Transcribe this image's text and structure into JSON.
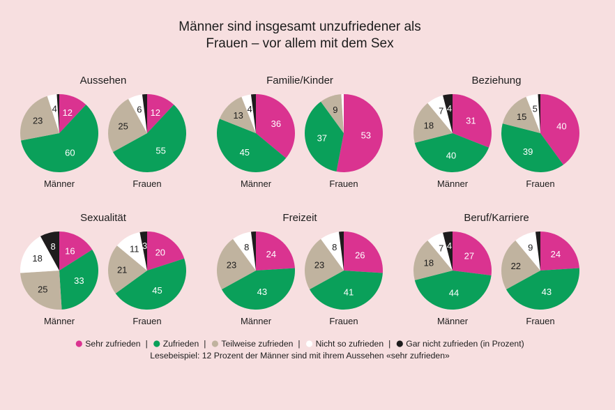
{
  "title_line1": "Männer sind insgesamt unzufriedener als",
  "title_line2": "Frauen – vor allem mit dem Sex",
  "colors": {
    "background": "#f7dfe0",
    "sehr_zufrieden": "#da3390",
    "zufrieden": "#0aa05a",
    "teilweise_zufrieden": "#c0b39f",
    "nicht_so_zufrieden": "#ffffff",
    "gar_nicht_zufrieden": "#1e1c1d"
  },
  "legend": [
    {
      "label": "Sehr zufrieden",
      "color": "#da3390"
    },
    {
      "label": "Zufrieden",
      "color": "#0aa05a"
    },
    {
      "label": "Teilweise zufrieden",
      "color": "#c0b39f"
    },
    {
      "label": "Nicht so zufrieden",
      "color": "#ffffff"
    },
    {
      "label": "Gar nicht zufrieden (in Prozent)",
      "color": "#1e1c1d"
    }
  ],
  "legend_separator": "|",
  "note": "Lesebeispiel: 12 Prozent der Männer sind mit ihrem Aussehen «sehr zufrieden»",
  "chart_data": {
    "type": "pie",
    "unit": "Prozent",
    "categories": [
      "Sehr zufrieden",
      "Zufrieden",
      "Teilweise zufrieden",
      "Nicht so zufrieden",
      "Gar nicht zufrieden"
    ],
    "groups": [
      {
        "name": "Aussehen",
        "charts": [
          {
            "label": "Männer",
            "values": [
              12,
              60,
              23,
              4,
              1
            ]
          },
          {
            "label": "Frauen",
            "values": [
              12,
              55,
              25,
              6,
              2
            ]
          }
        ]
      },
      {
        "name": "Familie/Kinder",
        "charts": [
          {
            "label": "Männer",
            "values": [
              36,
              45,
              13,
              4,
              2
            ]
          },
          {
            "label": "Frauen",
            "values": [
              53,
              37,
              9,
              1,
              0
            ]
          }
        ]
      },
      {
        "name": "Beziehung",
        "charts": [
          {
            "label": "Männer",
            "values": [
              31,
              40,
              18,
              7,
              4
            ]
          },
          {
            "label": "Frauen",
            "values": [
              40,
              39,
              15,
              5,
              1
            ]
          }
        ]
      },
      {
        "name": "Sexualität",
        "charts": [
          {
            "label": "Männer",
            "values": [
              16,
              33,
              25,
              18,
              8
            ]
          },
          {
            "label": "Frauen",
            "values": [
              20,
              45,
              21,
              11,
              3
            ]
          }
        ]
      },
      {
        "name": "Freizeit",
        "charts": [
          {
            "label": "Männer",
            "values": [
              24,
              43,
              23,
              8,
              2
            ]
          },
          {
            "label": "Frauen",
            "values": [
              26,
              41,
              23,
              8,
              2
            ]
          }
        ]
      },
      {
        "name": "Beruf/Karriere",
        "charts": [
          {
            "label": "Männer",
            "values": [
              27,
              44,
              18,
              7,
              4
            ]
          },
          {
            "label": "Frauen",
            "values": [
              24,
              43,
              22,
              9,
              2
            ]
          }
        ]
      }
    ]
  }
}
